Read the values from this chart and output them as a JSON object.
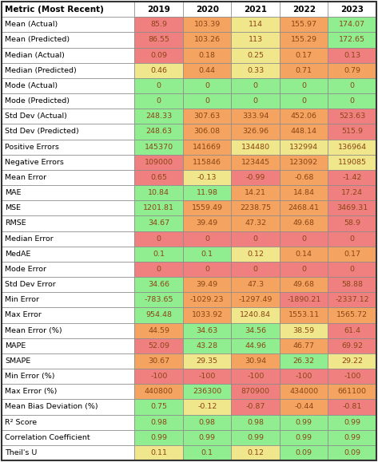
{
  "header": [
    "Metric (Most Recent)",
    "2019",
    "2020",
    "2021",
    "2022",
    "2023"
  ],
  "rows": [
    [
      "Mean (Actual)",
      "85.9",
      "103.39",
      "114",
      "155.97",
      "174.07"
    ],
    [
      "Mean (Predicted)",
      "86.55",
      "103.26",
      "113",
      "155.29",
      "172.65"
    ],
    [
      "Median (Actual)",
      "0.09",
      "0.18",
      "0.25",
      "0.17",
      "0.13"
    ],
    [
      "Median (Predicted)",
      "0.46",
      "0.44",
      "0.33",
      "0.71",
      "0.79"
    ],
    [
      "Mode (Actual)",
      "0",
      "0",
      "0",
      "0",
      "0"
    ],
    [
      "Mode (Predicted)",
      "0",
      "0",
      "0",
      "0",
      "0"
    ],
    [
      "Std Dev (Actual)",
      "248.33",
      "307.63",
      "333.94",
      "452.06",
      "523.63"
    ],
    [
      "Std Dev (Predicted)",
      "248.63",
      "306.08",
      "326.96",
      "448.14",
      "515.9"
    ],
    [
      "Positive Errors",
      "145370",
      "141669",
      "134480",
      "132994",
      "136964"
    ],
    [
      "Negative Errors",
      "109000",
      "115846",
      "123445",
      "123092",
      "119085"
    ],
    [
      "Mean Error",
      "0.65",
      "-0.13",
      "-0.99",
      "-0.68",
      "-1.42"
    ],
    [
      "MAE",
      "10.84",
      "11.98",
      "14.21",
      "14.84",
      "17.24"
    ],
    [
      "MSE",
      "1201.81",
      "1559.49",
      "2238.75",
      "2468.41",
      "3469.31"
    ],
    [
      "RMSE",
      "34.67",
      "39.49",
      "47.32",
      "49.68",
      "58.9"
    ],
    [
      "Median Error",
      "0",
      "0",
      "0",
      "0",
      "0"
    ],
    [
      "MedAE",
      "0.1",
      "0.1",
      "0.12",
      "0.14",
      "0.17"
    ],
    [
      "Mode Error",
      "0",
      "0",
      "0",
      "0",
      "0"
    ],
    [
      "Std Dev Error",
      "34.66",
      "39.49",
      "47.3",
      "49.68",
      "58.88"
    ],
    [
      "Min Error",
      "-783.65",
      "-1029.23",
      "-1297.49",
      "-1890.21",
      "-2337.12"
    ],
    [
      "Max Error",
      "954.48",
      "1033.92",
      "1240.84",
      "1553.11",
      "1565.72"
    ],
    [
      "Mean Error (%)",
      "44.59",
      "34.63",
      "34.56",
      "38.59",
      "61.4"
    ],
    [
      "MAPE",
      "52.09",
      "43.28",
      "44.96",
      "46.77",
      "69.92"
    ],
    [
      "SMAPE",
      "30.67",
      "29.35",
      "30.94",
      "26.32",
      "29.22"
    ],
    [
      "Min Error (%)",
      "-100",
      "-100",
      "-100",
      "-100",
      "-100"
    ],
    [
      "Max Error (%)",
      "440800",
      "236300",
      "870900",
      "434000",
      "661100"
    ],
    [
      "Mean Bias Deviation (%)",
      "0.75",
      "-0.12",
      "-0.87",
      "-0.44",
      "-0.81"
    ],
    [
      "R² Score",
      "0.98",
      "0.98",
      "0.98",
      "0.99",
      "0.99"
    ],
    [
      "Correlation Coefficient",
      "0.99",
      "0.99",
      "0.99",
      "0.99",
      "0.99"
    ],
    [
      "Theil's U",
      "0.11",
      "0.1",
      "0.12",
      "0.09",
      "0.09"
    ]
  ],
  "cell_colors": [
    [
      "#F08080",
      "#F4A460",
      "#F0E68C",
      "#F4A460",
      "#90EE90"
    ],
    [
      "#F08080",
      "#F4A460",
      "#F0E68C",
      "#F4A460",
      "#90EE90"
    ],
    [
      "#F08080",
      "#F4A460",
      "#F0E68C",
      "#F4A460",
      "#F08080"
    ],
    [
      "#F0E68C",
      "#F4A460",
      "#F0E68C",
      "#F4A460",
      "#F4A460"
    ],
    [
      "#90EE90",
      "#90EE90",
      "#90EE90",
      "#90EE90",
      "#90EE90"
    ],
    [
      "#90EE90",
      "#90EE90",
      "#90EE90",
      "#90EE90",
      "#90EE90"
    ],
    [
      "#90EE90",
      "#F4A460",
      "#F4A460",
      "#F4A460",
      "#F08080"
    ],
    [
      "#90EE90",
      "#F4A460",
      "#F4A460",
      "#F4A460",
      "#F08080"
    ],
    [
      "#90EE90",
      "#F4A460",
      "#F0E68C",
      "#F0E68C",
      "#F0E68C"
    ],
    [
      "#F08080",
      "#F4A460",
      "#F4A460",
      "#F4A460",
      "#F0E68C"
    ],
    [
      "#F08080",
      "#F0E68C",
      "#F08080",
      "#F4A460",
      "#F08080"
    ],
    [
      "#90EE90",
      "#90EE90",
      "#F4A460",
      "#F4A460",
      "#F08080"
    ],
    [
      "#90EE90",
      "#F4A460",
      "#F4A460",
      "#F4A460",
      "#F08080"
    ],
    [
      "#90EE90",
      "#F4A460",
      "#F4A460",
      "#F4A460",
      "#F08080"
    ],
    [
      "#F08080",
      "#F08080",
      "#F08080",
      "#F08080",
      "#F08080"
    ],
    [
      "#90EE90",
      "#90EE90",
      "#F0E68C",
      "#F4A460",
      "#F4A460"
    ],
    [
      "#F08080",
      "#F08080",
      "#F08080",
      "#F08080",
      "#F08080"
    ],
    [
      "#90EE90",
      "#F4A460",
      "#F4A460",
      "#F4A460",
      "#F08080"
    ],
    [
      "#90EE90",
      "#F4A460",
      "#F4A460",
      "#F08080",
      "#F08080"
    ],
    [
      "#90EE90",
      "#F4A460",
      "#F0E68C",
      "#F4A460",
      "#F4A460"
    ],
    [
      "#F4A460",
      "#90EE90",
      "#90EE90",
      "#F0E68C",
      "#F08080"
    ],
    [
      "#F08080",
      "#90EE90",
      "#90EE90",
      "#F4A460",
      "#F08080"
    ],
    [
      "#F4A460",
      "#F0E68C",
      "#F4A460",
      "#90EE90",
      "#F0E68C"
    ],
    [
      "#F08080",
      "#F08080",
      "#F08080",
      "#F08080",
      "#F08080"
    ],
    [
      "#F4A460",
      "#90EE90",
      "#F08080",
      "#F4A460",
      "#F4A460"
    ],
    [
      "#90EE90",
      "#F0E68C",
      "#F08080",
      "#F4A460",
      "#F08080"
    ],
    [
      "#90EE90",
      "#90EE90",
      "#90EE90",
      "#90EE90",
      "#90EE90"
    ],
    [
      "#90EE90",
      "#90EE90",
      "#90EE90",
      "#90EE90",
      "#90EE90"
    ],
    [
      "#F0E68C",
      "#90EE90",
      "#F0E68C",
      "#90EE90",
      "#90EE90"
    ]
  ],
  "text_color_data": "#8B4513",
  "text_color_header": "#000000",
  "text_color_metric": "#000000",
  "header_fontsize": 7.5,
  "cell_fontsize": 6.8,
  "figsize": [
    4.73,
    5.79
  ],
  "dpi": 100
}
